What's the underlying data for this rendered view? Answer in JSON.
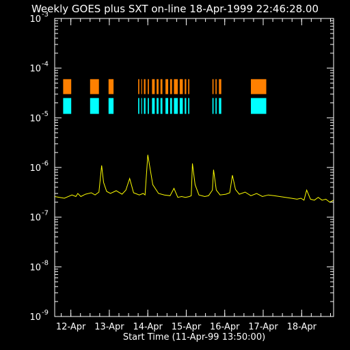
{
  "title": "Weekly GOES plus SXT on-line 18-Apr-1999 22:46:28.00",
  "xlabel": "Start Time (11-Apr-99 13:50:00)",
  "chart_data": {
    "type": "line",
    "title": "Weekly GOES plus SXT on-line 18-Apr-1999 22:46:28.00",
    "xlabel": "Start Time (11-Apr-99 13:50:00)",
    "ylabel": "",
    "y_scale": "log",
    "ylim": [
      1e-09,
      0.001
    ],
    "xlim": [
      0,
      7.25
    ],
    "y_ticks": [
      {
        "base": "10",
        "exp": "-3",
        "value": 0.001
      },
      {
        "base": "10",
        "exp": "-4",
        "value": 0.0001
      },
      {
        "base": "10",
        "exp": "-5",
        "value": 1e-05
      },
      {
        "base": "10",
        "exp": "-6",
        "value": 1e-06
      },
      {
        "base": "10",
        "exp": "-7",
        "value": 1e-07
      },
      {
        "base": "10",
        "exp": "-8",
        "value": 1e-08
      },
      {
        "base": "10",
        "exp": "-9",
        "value": 1e-09
      }
    ],
    "x_tick_labels": [
      {
        "label": "12-Apr",
        "x": 0.42
      },
      {
        "label": "13-Apr",
        "x": 1.42
      },
      {
        "label": "14-Apr",
        "x": 2.42
      },
      {
        "label": "15-Apr",
        "x": 3.42
      },
      {
        "label": "16-Apr",
        "x": 4.42
      },
      {
        "label": "17-Apr",
        "x": 5.42
      },
      {
        "label": "18-Apr",
        "x": 6.42
      }
    ],
    "series": [
      {
        "color": "#ffff00",
        "x": [
          0.0,
          0.25,
          0.45,
          0.55,
          0.6,
          0.68,
          0.8,
          0.95,
          1.05,
          1.15,
          1.22,
          1.27,
          1.35,
          1.45,
          1.6,
          1.75,
          1.85,
          1.95,
          2.05,
          2.2,
          2.3,
          2.35,
          2.42,
          2.55,
          2.7,
          2.85,
          3.0,
          3.1,
          3.2,
          3.3,
          3.4,
          3.5,
          3.55,
          3.58,
          3.65,
          3.75,
          3.9,
          4.0,
          4.1,
          4.13,
          4.2,
          4.3,
          4.45,
          4.55,
          4.62,
          4.7,
          4.8,
          4.95,
          5.1,
          5.25,
          5.4,
          5.55,
          5.7,
          5.85,
          6.0,
          6.15,
          6.3,
          6.4,
          6.48,
          6.55,
          6.65,
          6.75,
          6.85,
          6.95,
          7.05,
          7.15,
          7.25
        ],
        "y": [
          2.6e-07,
          2.4e-07,
          2.8e-07,
          2.6e-07,
          3e-07,
          2.6e-07,
          2.9e-07,
          3.1e-07,
          2.8e-07,
          3.2e-07,
          1.1e-06,
          5e-07,
          3.3e-07,
          3e-07,
          3.4e-07,
          2.9e-07,
          3.5e-07,
          6e-07,
          3.1e-07,
          2.8e-07,
          3e-07,
          2.8e-07,
          1.8e-06,
          4.5e-07,
          3e-07,
          2.8e-07,
          2.7e-07,
          3.8e-07,
          2.5e-07,
          2.6e-07,
          2.5e-07,
          2.6e-07,
          2.7e-07,
          1.2e-06,
          4.5e-07,
          2.8e-07,
          2.6e-07,
          2.7e-07,
          3.5e-07,
          9e-07,
          3.5e-07,
          2.8e-07,
          2.9e-07,
          3.1e-07,
          7e-07,
          3.6e-07,
          2.9e-07,
          3.2e-07,
          2.7e-07,
          3e-07,
          2.6e-07,
          2.8e-07,
          2.7e-07,
          2.6e-07,
          2.5e-07,
          2.4e-07,
          2.3e-07,
          2.4e-07,
          2.2e-07,
          3.5e-07,
          2.3e-07,
          2.2e-07,
          2.5e-07,
          2.2e-07,
          2.3e-07,
          2e-07,
          2.2e-07
        ]
      }
    ],
    "coverage_bands": [
      {
        "color": "#ff8000",
        "ybottom": 3e-05,
        "ytop": 6e-05,
        "intervals": [
          [
            0.22,
            0.43
          ],
          [
            0.92,
            1.15
          ],
          [
            1.4,
            1.53
          ],
          [
            2.17,
            2.2
          ],
          [
            2.25,
            2.27
          ],
          [
            2.32,
            2.36
          ],
          [
            2.42,
            2.45
          ],
          [
            2.53,
            2.6
          ],
          [
            2.65,
            2.7
          ],
          [
            2.75,
            2.8
          ],
          [
            2.88,
            2.95
          ],
          [
            3.0,
            3.05
          ],
          [
            3.1,
            3.2
          ],
          [
            3.25,
            3.33
          ],
          [
            3.38,
            3.42
          ],
          [
            3.47,
            3.5
          ],
          [
            4.1,
            4.13
          ],
          [
            4.18,
            4.21
          ],
          [
            4.27,
            4.33
          ],
          [
            5.1,
            5.5
          ]
        ]
      },
      {
        "color": "#00ffff",
        "ybottom": 1.2e-05,
        "ytop": 2.5e-05,
        "intervals": [
          [
            0.22,
            0.43
          ],
          [
            0.92,
            1.15
          ],
          [
            1.4,
            1.53
          ],
          [
            2.17,
            2.2
          ],
          [
            2.25,
            2.27
          ],
          [
            2.32,
            2.36
          ],
          [
            2.42,
            2.45
          ],
          [
            2.53,
            2.6
          ],
          [
            2.65,
            2.7
          ],
          [
            2.75,
            2.8
          ],
          [
            2.88,
            2.95
          ],
          [
            3.0,
            3.05
          ],
          [
            3.1,
            3.2
          ],
          [
            3.25,
            3.33
          ],
          [
            3.38,
            3.42
          ],
          [
            3.47,
            3.5
          ],
          [
            4.1,
            4.13
          ],
          [
            4.18,
            4.21
          ],
          [
            4.27,
            4.33
          ],
          [
            5.1,
            5.5
          ]
        ]
      }
    ],
    "grid": false,
    "colors": {
      "background": "#000000",
      "axes": "#ffffff",
      "flux": "#ffff00",
      "band_top": "#ff8000",
      "band_bottom": "#00ffff"
    }
  }
}
